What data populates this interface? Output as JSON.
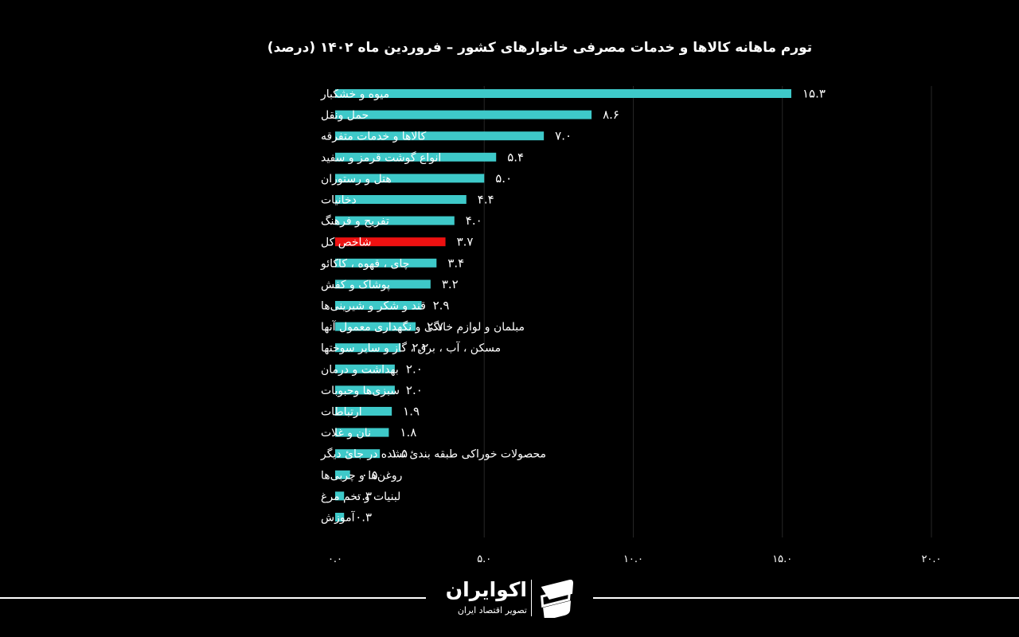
{
  "chart_data": {
    "type": "bar",
    "orientation": "horizontal",
    "title": "تورم ماهانه کالاها و خدمات مصرفی خانوارهای کشور – فروردین ماه ۱۴۰۲ (درصد)",
    "categories": [
      "میوه و خشکبار",
      "حمل ونقل",
      "کالاها و خدمات متفرقه",
      "انواع گوشت قرمز و سفید",
      "هتل و رستوران",
      "دخانیات",
      "تفریح و فرهنگ",
      "شاخص کل",
      "چای ، قهوه ، کاکائو",
      "پوشاک و کفش",
      "قند و شکر و شیرینی‌ها",
      "مبلمان و لوازم خانگی و نگهداری معمول آنها",
      "مسکن ، آب ، برق ، گاز و سایر سوختها",
      "بهداشت و درمان",
      "سبزی‌ها وحبوبات",
      "ارتباطات",
      "نان و غلات",
      "محصولات خوراکی طبقه بندئ نشده در جائ دیگر",
      "روغن‌ها و چربی‌ها",
      "لبنیات و تخم مرغ",
      "آموزش"
    ],
    "values": [
      15.3,
      8.6,
      7.0,
      5.4,
      5.0,
      4.4,
      4.0,
      3.7,
      3.4,
      3.2,
      2.9,
      2.7,
      2.2,
      2.0,
      2.0,
      1.9,
      1.8,
      1.5,
      0.5,
      0.3,
      0.3
    ],
    "value_labels": [
      "۱۵.۳",
      "۸.۶",
      "۷.۰",
      "۵.۴",
      "۵.۰",
      "۴.۴",
      "۴.۰",
      "۳.۷",
      "۳.۴",
      "۳.۲",
      "۲.۹",
      "۲.۷",
      "۲.۲",
      "۲.۰",
      "۲.۰",
      "۱.۹",
      "۱.۸",
      "۱.۵",
      "۰.۵",
      "۰.۳",
      "۰.۳"
    ],
    "highlight_category": "شاخص کل",
    "xlim": [
      0,
      20
    ],
    "xticks": [
      0,
      5,
      10,
      15,
      20
    ],
    "xtick_labels": [
      "۰.۰",
      "۵.۰",
      "۱۰.۰",
      "۱۵.۰",
      "۲۰.۰"
    ],
    "grid": true,
    "xlabel": "",
    "ylabel": "",
    "colors": {
      "bar": "#3ec9c9",
      "highlight": "#ee1111",
      "grid": "#262626",
      "text": "#ffffff",
      "background": "#000000"
    }
  },
  "brand": {
    "name": "اکوایران",
    "tagline": "تصویر اقتصاد ایران",
    "logo_icon": "ecoiran-logo-icon"
  }
}
